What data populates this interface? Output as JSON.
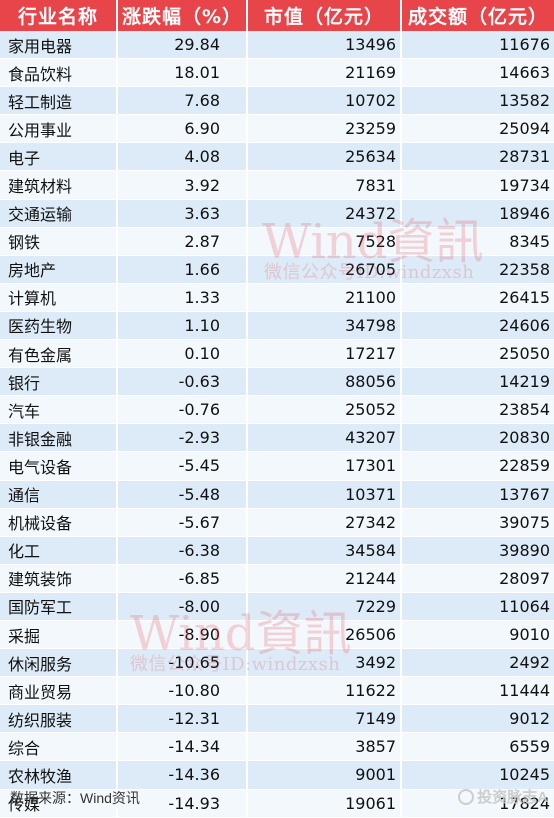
{
  "table": {
    "headers": [
      "行业名称",
      "涨跌幅（%）",
      "市值（亿元）",
      "成交额（亿元）"
    ],
    "rows": [
      {
        "name": "家用电器",
        "change": "29.84",
        "cap": "13496",
        "turnover": "11676"
      },
      {
        "name": "食品饮料",
        "change": "18.01",
        "cap": "21169",
        "turnover": "14663"
      },
      {
        "name": "轻工制造",
        "change": "7.68",
        "cap": "10702",
        "turnover": "13582"
      },
      {
        "name": "公用事业",
        "change": "6.90",
        "cap": "23259",
        "turnover": "25094"
      },
      {
        "name": "电子",
        "change": "4.08",
        "cap": "25634",
        "turnover": "28731"
      },
      {
        "name": "建筑材料",
        "change": "3.92",
        "cap": "7831",
        "turnover": "19734"
      },
      {
        "name": "交通运输",
        "change": "3.63",
        "cap": "24372",
        "turnover": "18946"
      },
      {
        "name": "钢铁",
        "change": "2.87",
        "cap": "7528",
        "turnover": "8345"
      },
      {
        "name": "房地产",
        "change": "1.66",
        "cap": "26705",
        "turnover": "22358"
      },
      {
        "name": "计算机",
        "change": "1.33",
        "cap": "21100",
        "turnover": "26415"
      },
      {
        "name": "医药生物",
        "change": "1.10",
        "cap": "34798",
        "turnover": "24606"
      },
      {
        "name": "有色金属",
        "change": "0.10",
        "cap": "17217",
        "turnover": "25050"
      },
      {
        "name": "银行",
        "change": "-0.63",
        "cap": "88056",
        "turnover": "14219"
      },
      {
        "name": "汽车",
        "change": "-0.76",
        "cap": "25052",
        "turnover": "23854"
      },
      {
        "name": "非银金融",
        "change": "-2.93",
        "cap": "43207",
        "turnover": "20830"
      },
      {
        "name": "电气设备",
        "change": "-5.45",
        "cap": "17301",
        "turnover": "22859"
      },
      {
        "name": "通信",
        "change": "-5.48",
        "cap": "10371",
        "turnover": "13767"
      },
      {
        "name": "机械设备",
        "change": "-5.67",
        "cap": "27342",
        "turnover": "39075"
      },
      {
        "name": "化工",
        "change": "-6.38",
        "cap": "34584",
        "turnover": "39890"
      },
      {
        "name": "建筑装饰",
        "change": "-6.85",
        "cap": "21244",
        "turnover": "28097"
      },
      {
        "name": "国防军工",
        "change": "-8.00",
        "cap": "7229",
        "turnover": "11064"
      },
      {
        "name": "采掘",
        "change": "-8.90",
        "cap": "26506",
        "turnover": "9010"
      },
      {
        "name": "休闲服务",
        "change": "-10.65",
        "cap": "3492",
        "turnover": "2492"
      },
      {
        "name": "商业贸易",
        "change": "-10.80",
        "cap": "11622",
        "turnover": "11444"
      },
      {
        "name": "纺织服装",
        "change": "-12.31",
        "cap": "7149",
        "turnover": "9012"
      },
      {
        "name": "综合",
        "change": "-14.34",
        "cap": "3857",
        "turnover": "6559"
      },
      {
        "name": "农林牧渔",
        "change": "-14.36",
        "cap": "9001",
        "turnover": "10245"
      },
      {
        "name": "传媒",
        "change": "-14.93",
        "cap": "19061",
        "turnover": "17824"
      }
    ]
  },
  "watermarks": [
    {
      "brand": "Wind資訊",
      "wechat": "微信公众号ID:windzxsh"
    },
    {
      "brand": "Wind資訊",
      "wechat": "微信公众号ID:windzxsh"
    }
  ],
  "footer": {
    "source": "数据来源：Wind资讯",
    "brand": "投资脉志A",
    "brand_icon": "logo-icon"
  },
  "colors": {
    "header_bg": "#e8454b",
    "row_odd": "#dcebf7",
    "row_even": "#f3f8fc",
    "watermark": "#e8454b"
  }
}
